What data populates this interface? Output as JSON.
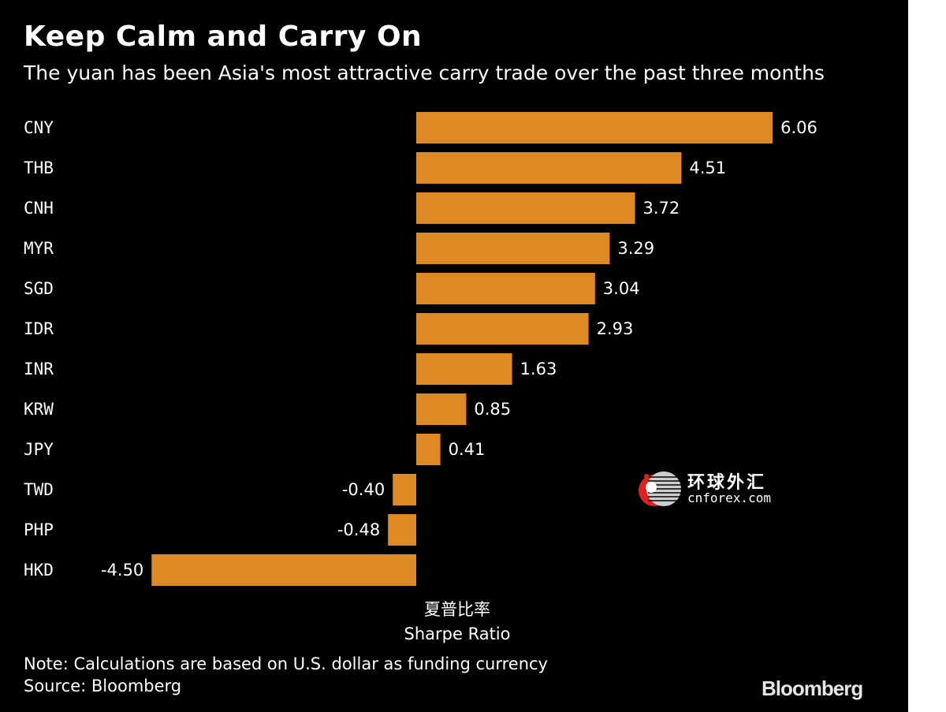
{
  "chart_data": {
    "type": "bar",
    "orientation": "horizontal",
    "title": "Keep Calm and Carry On",
    "subtitle": "The yuan has been Asia's most attractive carry trade over the past three months",
    "categories": [
      "CNY",
      "THB",
      "CNH",
      "MYR",
      "SGD",
      "IDR",
      "INR",
      "KRW",
      "JPY",
      "TWD",
      "PHP",
      "HKD"
    ],
    "values": [
      6.06,
      4.51,
      3.72,
      3.29,
      3.04,
      2.93,
      1.63,
      0.85,
      0.41,
      -0.4,
      -0.48,
      -4.5
    ],
    "value_labels": [
      "6.06",
      "4.51",
      "3.72",
      "3.29",
      "3.04",
      "2.93",
      "1.63",
      "0.85",
      "0.41",
      "-0.40",
      "-0.48",
      "-4.50"
    ],
    "xlabel": "Sharpe Ratio",
    "xlabel_cn": "夏普比率",
    "xlim": [
      -4.5,
      6.06
    ],
    "grid": false,
    "bar_color": "#dd8a24"
  },
  "note": "Note: Calculations are based on U.S. dollar as funding currency",
  "source": "Source: Bloomberg",
  "brand": "Bloomberg",
  "watermark": {
    "cn_text": "环球外汇",
    "en_text": "cnforex.com"
  },
  "colors": {
    "background": "#000000",
    "text": "#ffffff",
    "bar": "#dd8a24",
    "watermark_red": "#e0221e"
  }
}
